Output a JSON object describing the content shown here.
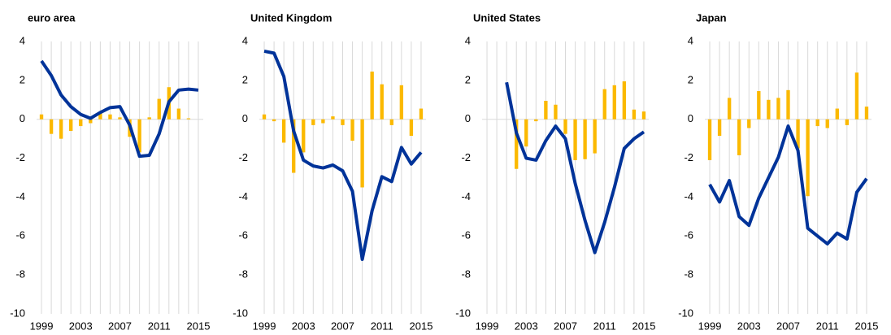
{
  "chart_data": [
    {
      "type": "bar",
      "title": "euro area",
      "x": [
        1999,
        2000,
        2001,
        2002,
        2003,
        2004,
        2005,
        2006,
        2007,
        2008,
        2009,
        2010,
        2011,
        2012,
        2013,
        2014,
        2015
      ],
      "xlim": [
        1998.5,
        2015.5
      ],
      "xticks": [
        1999,
        2003,
        2007,
        2011,
        2015
      ],
      "ylim": [
        -10,
        4
      ],
      "yticks": [
        -10,
        -8,
        -6,
        -4,
        -2,
        0,
        2,
        4
      ],
      "grid": true,
      "series": [
        {
          "type": "bar",
          "color": "#fbb900",
          "values": [
            0.25,
            -0.75,
            -1.0,
            -0.6,
            -0.35,
            -0.2,
            0.3,
            0.25,
            0.1,
            -0.9,
            -1.7,
            0.1,
            1.05,
            1.65,
            0.55,
            0.05,
            0.0
          ]
        },
        {
          "type": "line",
          "color": "#003399",
          "values": [
            3.0,
            2.25,
            1.25,
            0.65,
            0.25,
            0.05,
            0.35,
            0.6,
            0.65,
            -0.3,
            -1.9,
            -1.85,
            -0.75,
            0.9,
            1.5,
            1.55,
            1.5
          ]
        }
      ]
    },
    {
      "type": "bar",
      "title": "United Kingdom",
      "x": [
        1999,
        2000,
        2001,
        2002,
        2003,
        2004,
        2005,
        2006,
        2007,
        2008,
        2009,
        2010,
        2011,
        2012,
        2013,
        2014,
        2015
      ],
      "xlim": [
        1998.5,
        2015.5
      ],
      "xticks": [
        1999,
        2003,
        2007,
        2011,
        2015
      ],
      "ylim": [
        -10,
        4
      ],
      "yticks": [
        -10,
        -8,
        -6,
        -4,
        -2,
        0,
        2,
        4
      ],
      "grid": true,
      "series": [
        {
          "type": "bar",
          "color": "#fbb900",
          "values": [
            0.25,
            -0.1,
            -1.2,
            -2.75,
            -1.7,
            -0.3,
            -0.2,
            0.15,
            -0.3,
            -1.1,
            -3.5,
            2.45,
            1.8,
            -0.3,
            1.75,
            -0.85,
            0.55
          ]
        },
        {
          "type": "line",
          "color": "#003399",
          "values": [
            3.5,
            3.4,
            2.2,
            -0.6,
            -2.1,
            -2.4,
            -2.5,
            -2.35,
            -2.65,
            -3.7,
            -7.2,
            -4.7,
            -2.95,
            -3.2,
            -1.45,
            -2.3,
            -1.7
          ]
        }
      ]
    },
    {
      "type": "bar",
      "title": "United States",
      "x": [
        1999,
        2000,
        2001,
        2002,
        2003,
        2004,
        2005,
        2006,
        2007,
        2008,
        2009,
        2010,
        2011,
        2012,
        2013,
        2014,
        2015
      ],
      "xlim": [
        1998.5,
        2015.5
      ],
      "xticks": [
        1999,
        2003,
        2007,
        2011,
        2015
      ],
      "ylim": [
        -10,
        4
      ],
      "yticks": [
        -10,
        -8,
        -6,
        -4,
        -2,
        0,
        2,
        4
      ],
      "grid": true,
      "series": [
        {
          "type": "bar",
          "color": "#fbb900",
          "values": [
            null,
            null,
            null,
            -2.55,
            -1.4,
            -0.1,
            0.95,
            0.75,
            -0.75,
            -2.1,
            -2.05,
            -1.75,
            1.55,
            1.75,
            1.95,
            0.5,
            0.4
          ]
        },
        {
          "type": "line",
          "color": "#003399",
          "values": [
            null,
            null,
            1.9,
            -0.7,
            -2.0,
            -2.1,
            -1.1,
            -0.35,
            -1.0,
            -3.3,
            -5.2,
            -6.85,
            -5.3,
            -3.5,
            -1.5,
            -1.0,
            -0.65
          ]
        }
      ]
    },
    {
      "type": "bar",
      "title": "Japan",
      "x": [
        1999,
        2000,
        2001,
        2002,
        2003,
        2004,
        2005,
        2006,
        2007,
        2008,
        2009,
        2010,
        2011,
        2012,
        2013,
        2014,
        2015
      ],
      "xlim": [
        1998.5,
        2015.5
      ],
      "xticks": [
        1999,
        2003,
        2007,
        2011,
        2015
      ],
      "ylim": [
        -10,
        4
      ],
      "yticks": [
        -10,
        -8,
        -6,
        -4,
        -2,
        0,
        2,
        4
      ],
      "grid": true,
      "series": [
        {
          "type": "bar",
          "color": "#fbb900",
          "values": [
            -2.1,
            -0.85,
            1.1,
            -1.85,
            -0.45,
            1.45,
            1.0,
            1.1,
            1.5,
            -1.5,
            -3.95,
            -0.35,
            -0.45,
            0.55,
            -0.3,
            2.4,
            0.65
          ]
        },
        {
          "type": "line",
          "color": "#003399",
          "values": [
            -3.35,
            -4.25,
            -3.15,
            -5.0,
            -5.45,
            -4.05,
            -3.0,
            -1.95,
            -0.35,
            -1.6,
            -5.6,
            -6.0,
            -6.4,
            -5.85,
            -6.15,
            -3.75,
            -3.05
          ]
        }
      ]
    }
  ]
}
